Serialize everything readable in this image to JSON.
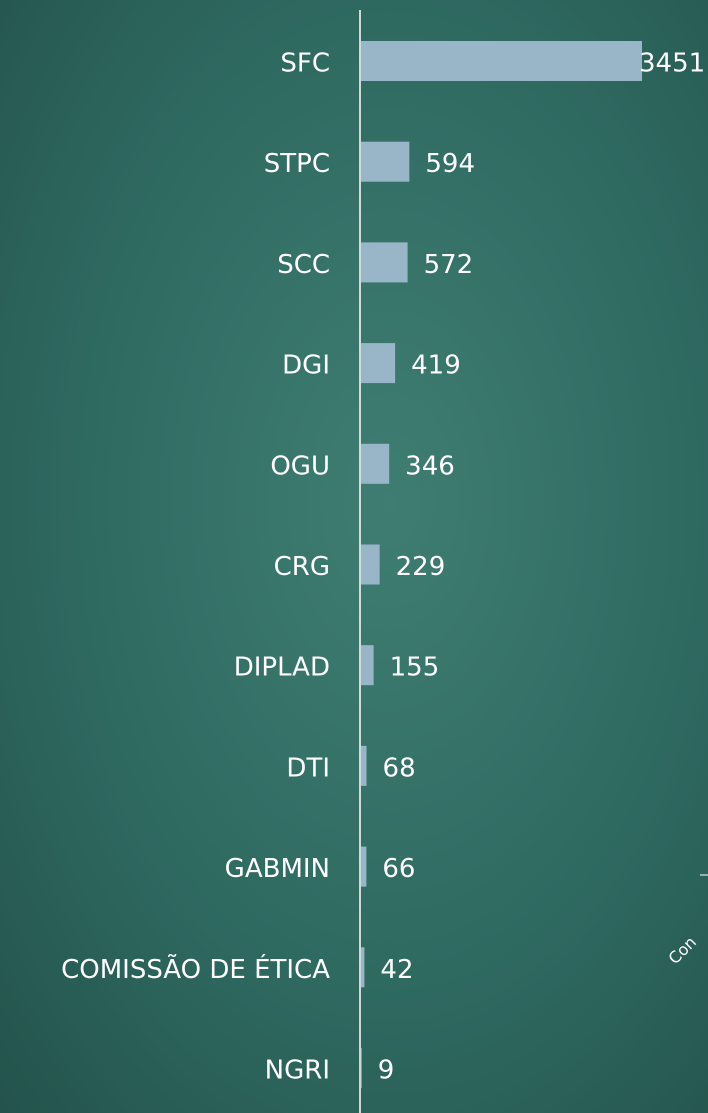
{
  "chart_data": {
    "type": "barh",
    "categories": [
      "SFC",
      "STPC",
      "SCC",
      "DGI",
      "OGU",
      "CRG",
      "DIPLAD",
      "DTI",
      "GABMIN",
      "COMISSÃO DE ÉTICA",
      "NGRI"
    ],
    "values": [
      3451,
      594,
      572,
      419,
      346,
      229,
      155,
      68,
      66,
      42,
      9
    ],
    "color": "#98b6c8",
    "xlim": [
      0,
      3500
    ],
    "annotation": "Con"
  }
}
